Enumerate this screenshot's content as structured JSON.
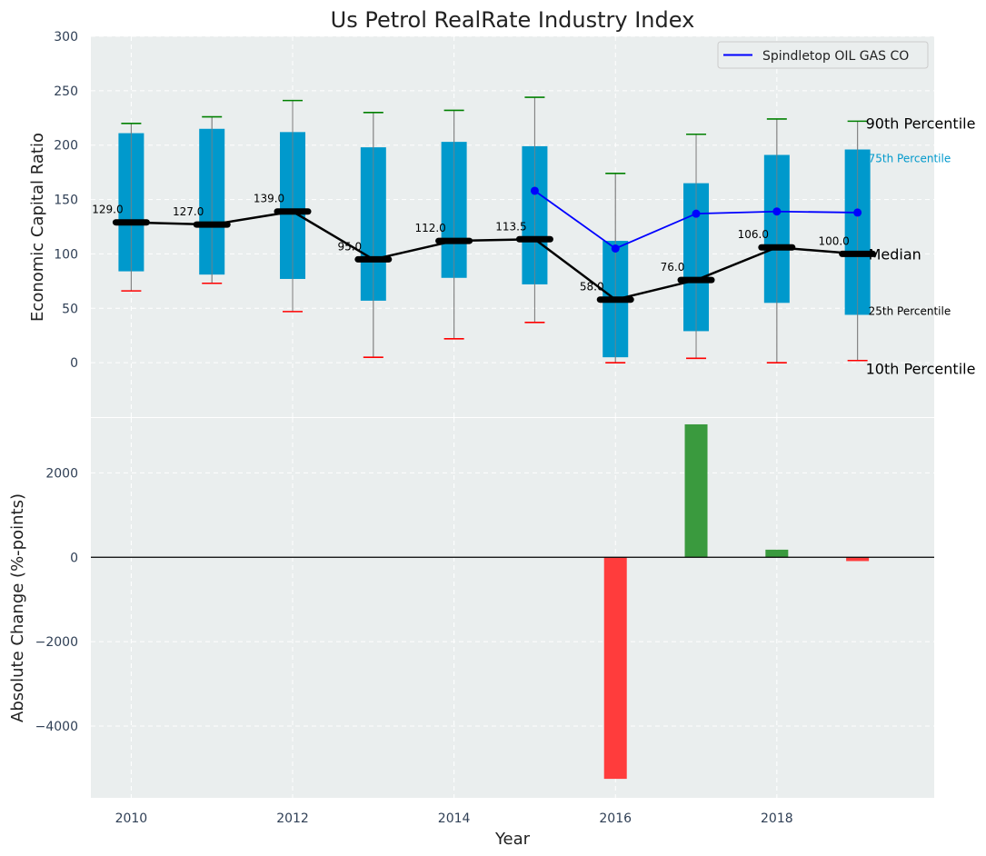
{
  "chart_data": [
    {
      "type": "box",
      "title": "Us Petrol RealRate Industry Index",
      "xlabel": "",
      "ylabel": "Economic Capital Ratio",
      "ylim": [
        -50,
        300
      ],
      "yticks": [
        0,
        50,
        100,
        150,
        200,
        250,
        300
      ],
      "xlim": [
        2009.5,
        2019.95
      ],
      "years": [
        2010,
        2011,
        2012,
        2013,
        2014,
        2015,
        2016,
        2017,
        2018,
        2019
      ],
      "p10": [
        66,
        73,
        47,
        5,
        22,
        37,
        0,
        4,
        0,
        2
      ],
      "p25": [
        84,
        81,
        77,
        57,
        78,
        72,
        5,
        29,
        55,
        44
      ],
      "median": [
        129.0,
        127.0,
        139.0,
        95.0,
        112.0,
        113.5,
        58.0,
        76.0,
        106.0,
        100.0
      ],
      "median_labels": [
        "129.0",
        "127.0",
        "139.0",
        "95.0",
        "112.0",
        "113.5",
        "58.0",
        "76.0",
        "106.0",
        "100.0"
      ],
      "p75": [
        211,
        215,
        212,
        198,
        203,
        199,
        112,
        165,
        191,
        196
      ],
      "p90": [
        220,
        226,
        241,
        230,
        232,
        244,
        174,
        210,
        224,
        222
      ],
      "company": {
        "name": "Spindletop OIL GAS CO",
        "years": [
          2015,
          2016,
          2017,
          2018,
          2019
        ],
        "values": [
          158,
          105,
          137,
          139,
          138
        ]
      },
      "annotations": {
        "p90": "90th Percentile",
        "p75": "75th Percentile",
        "median": "Median",
        "p25": "25th Percentile",
        "p10": "10th Percentile"
      },
      "legend_position": "top-right",
      "grid": true,
      "colors": {
        "box": "#0099cc",
        "median": "#000000",
        "company": "#0000ff",
        "p90_cap": "#008000",
        "p10_cap": "#ff0000",
        "whisker": "#808080",
        "background": "#eaeeee"
      }
    },
    {
      "type": "bar",
      "title": "",
      "xlabel": "Year",
      "ylabel": "Absolute Change (%-points)",
      "ylim": [
        -5700,
        3300
      ],
      "yticks": [
        -4000,
        -2000,
        0,
        2000
      ],
      "ytick_labels": [
        "−4000",
        "−2000",
        "0",
        "2000"
      ],
      "xticks": [
        2010,
        2012,
        2014,
        2016,
        2018
      ],
      "years": [
        2016,
        2017,
        2018,
        2019
      ],
      "values": [
        -5250,
        3150,
        180,
        -90
      ],
      "colors": {
        "positive": "#3a9a3e",
        "negative": "#ff3c3c",
        "zero_line": "#000000"
      }
    }
  ]
}
